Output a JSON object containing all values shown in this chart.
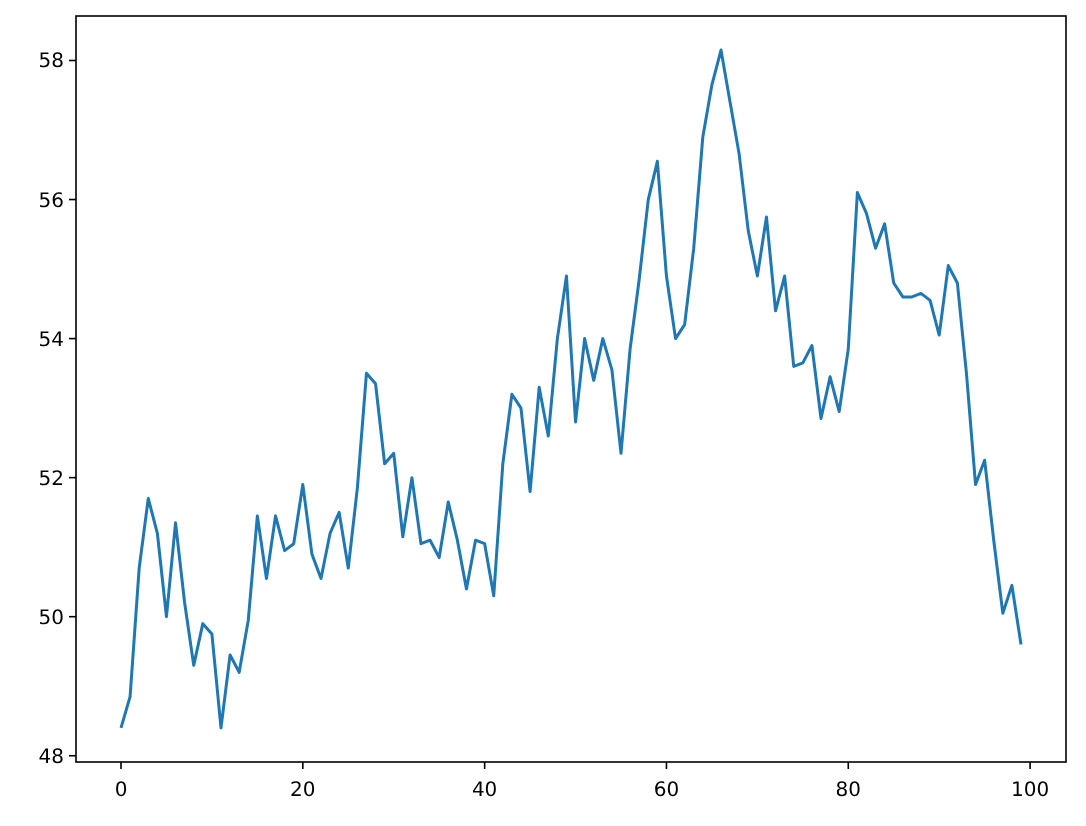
{
  "chart_data": {
    "type": "line",
    "x": [
      0,
      1,
      2,
      3,
      4,
      5,
      6,
      7,
      8,
      9,
      10,
      11,
      12,
      13,
      14,
      15,
      16,
      17,
      18,
      19,
      20,
      21,
      22,
      23,
      24,
      25,
      26,
      27,
      28,
      29,
      30,
      31,
      32,
      33,
      34,
      35,
      36,
      37,
      38,
      39,
      40,
      41,
      42,
      43,
      44,
      45,
      46,
      47,
      48,
      49,
      50,
      51,
      52,
      53,
      54,
      55,
      56,
      57,
      58,
      59,
      60,
      61,
      62,
      63,
      64,
      65,
      66,
      67,
      68,
      69,
      70,
      71,
      72,
      73,
      74,
      75,
      76,
      77,
      78,
      79,
      80,
      81,
      82,
      83,
      84,
      85,
      86,
      87,
      88,
      89,
      90,
      91,
      92,
      93,
      94,
      95,
      96,
      97,
      98,
      99
    ],
    "series": [
      {
        "color": "#1f77b4",
        "values": [
          48.4,
          48.85,
          50.7,
          51.7,
          51.2,
          50.0,
          51.35,
          50.2,
          49.3,
          49.9,
          49.75,
          48.4,
          49.45,
          49.2,
          49.95,
          51.45,
          50.55,
          51.45,
          50.95,
          51.05,
          51.9,
          50.9,
          50.55,
          51.2,
          51.5,
          50.7,
          51.85,
          53.5,
          53.35,
          52.2,
          52.35,
          51.15,
          52.0,
          51.05,
          51.1,
          50.85,
          51.65,
          51.1,
          50.4,
          51.1,
          51.05,
          50.3,
          52.2,
          53.2,
          53.0,
          51.8,
          53.3,
          52.6,
          54.0,
          54.9,
          52.8,
          54.0,
          53.4,
          54.0,
          53.55,
          52.35,
          53.85,
          54.85,
          56.0,
          56.55,
          54.9,
          54.0,
          54.2,
          55.3,
          56.9,
          57.65,
          58.15,
          57.4,
          56.65,
          55.55,
          54.9,
          55.75,
          54.4,
          54.9,
          53.6,
          53.65,
          53.9,
          52.85,
          53.45,
          52.95,
          53.85,
          56.1,
          55.8,
          55.3,
          55.65,
          54.8,
          54.6,
          54.6,
          54.65,
          54.55,
          54.05,
          55.05,
          54.8,
          53.5,
          51.9,
          52.25,
          51.1,
          50.05,
          50.45,
          49.6
        ]
      }
    ],
    "xlim": [
      -4.95,
      103.95
    ],
    "ylim": [
      47.91,
      58.64
    ],
    "xticks": [
      0,
      20,
      40,
      60,
      80,
      100
    ],
    "yticks": [
      48,
      50,
      52,
      54,
      56,
      58
    ],
    "grid": false,
    "marker": "none",
    "line_style": "solid"
  }
}
